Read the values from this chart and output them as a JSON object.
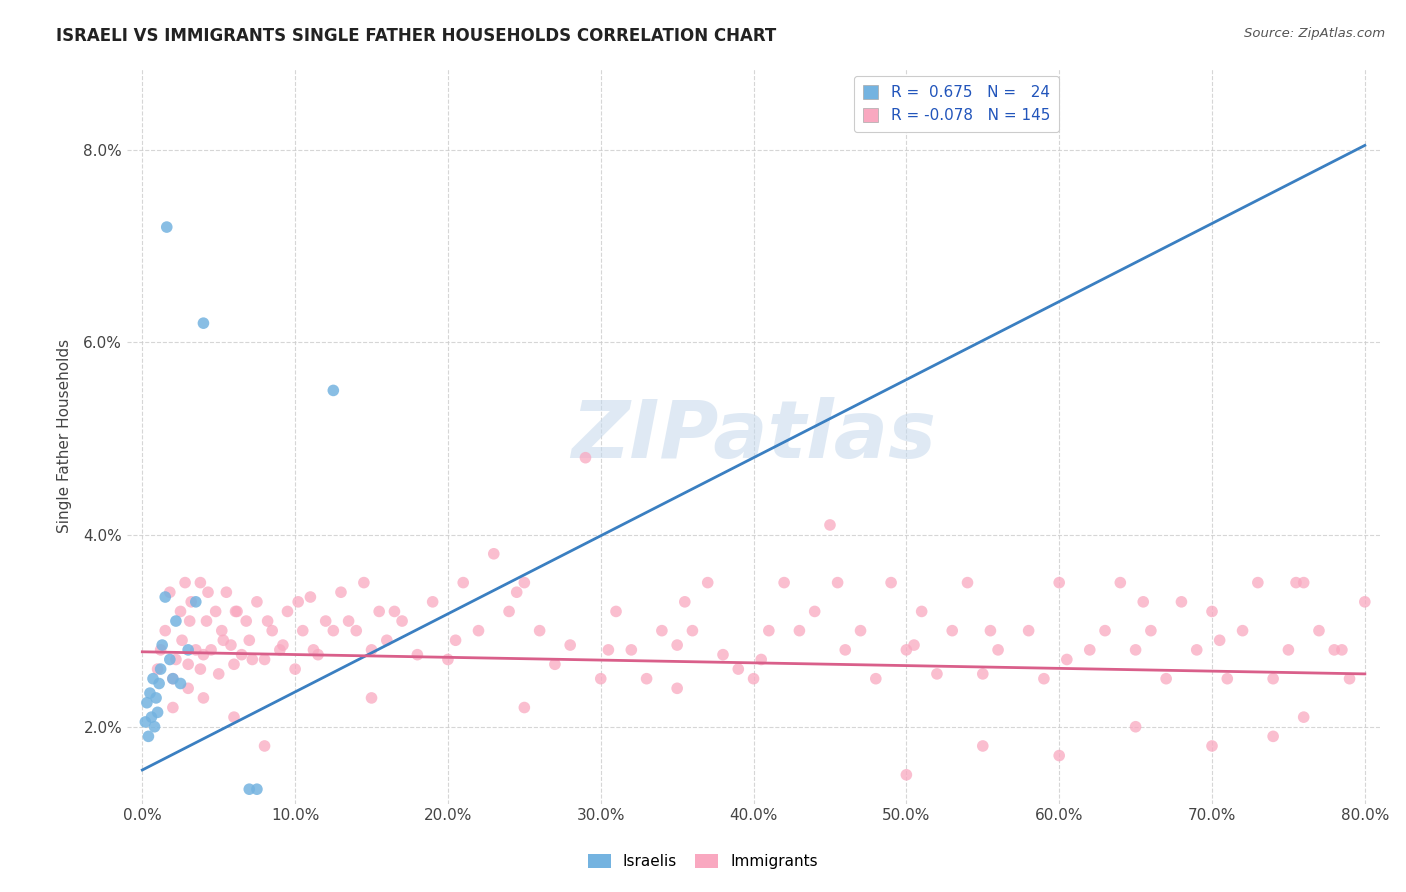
{
  "title": "ISRAELI VS IMMIGRANTS SINGLE FATHER HOUSEHOLDS CORRELATION CHART",
  "source": "Source: ZipAtlas.com",
  "ylabel": "Single Father Households",
  "watermark": "ZIPatlas",
  "xlim": [
    -1,
    81
  ],
  "ylim": [
    1.2,
    8.85
  ],
  "xticks": [
    0,
    10,
    20,
    30,
    40,
    50,
    60,
    70,
    80
  ],
  "yticks": [
    2.0,
    4.0,
    6.0,
    8.0
  ],
  "israelis_color": "#74b3e0",
  "immigrants_color": "#f9a8c0",
  "trend_israeli_color": "#3a7fc1",
  "trend_immigrant_color": "#d95f8a",
  "background_color": "#ffffff",
  "grid_color": "#cccccc",
  "trend_isr_x0": 0,
  "trend_isr_y0": 1.55,
  "trend_isr_x1": 80,
  "trend_isr_y1": 8.05,
  "trend_imm_x0": 0,
  "trend_imm_y0": 2.78,
  "trend_imm_x1": 80,
  "trend_imm_y1": 2.55,
  "israelis_x": [
    0.2,
    0.3,
    0.4,
    0.5,
    0.6,
    0.7,
    0.8,
    0.9,
    1.0,
    1.1,
    1.2,
    1.3,
    1.5,
    1.6,
    1.8,
    2.0,
    2.2,
    2.5,
    3.0,
    3.5,
    4.0,
    7.0,
    7.5,
    12.5
  ],
  "israelis_y": [
    2.05,
    2.25,
    1.9,
    2.35,
    2.1,
    2.5,
    2.0,
    2.3,
    2.15,
    2.45,
    2.6,
    2.85,
    3.35,
    7.2,
    2.7,
    2.5,
    3.1,
    2.45,
    2.8,
    3.3,
    6.2,
    1.35,
    1.35,
    5.5
  ],
  "immigrants_x": [
    1.0,
    1.5,
    2.0,
    2.5,
    2.8,
    3.0,
    3.2,
    3.5,
    3.8,
    4.0,
    4.2,
    4.5,
    4.8,
    5.0,
    5.2,
    5.5,
    5.8,
    6.0,
    6.2,
    6.5,
    6.8,
    7.0,
    7.5,
    8.0,
    8.5,
    9.0,
    9.5,
    10.0,
    10.5,
    11.0,
    11.5,
    12.0,
    12.5,
    13.0,
    14.0,
    14.5,
    15.0,
    15.5,
    16.0,
    17.0,
    18.0,
    19.0,
    20.0,
    21.0,
    22.0,
    23.0,
    24.0,
    25.0,
    26.0,
    27.0,
    28.0,
    29.0,
    30.0,
    31.0,
    32.0,
    33.0,
    34.0,
    35.0,
    36.0,
    37.0,
    38.0,
    39.0,
    40.0,
    41.0,
    42.0,
    43.0,
    44.0,
    45.0,
    46.0,
    47.0,
    48.0,
    49.0,
    50.0,
    51.0,
    52.0,
    53.0,
    54.0,
    55.0,
    56.0,
    58.0,
    59.0,
    60.0,
    62.0,
    63.0,
    64.0,
    65.0,
    66.0,
    67.0,
    68.0,
    69.0,
    70.0,
    71.0,
    72.0,
    73.0,
    74.0,
    75.0,
    76.0,
    77.0,
    78.0,
    79.0
  ],
  "immigrants_y": [
    2.6,
    3.0,
    2.5,
    3.2,
    3.5,
    2.65,
    3.3,
    2.8,
    3.5,
    2.75,
    3.1,
    2.8,
    3.2,
    2.55,
    3.0,
    3.4,
    2.85,
    2.65,
    3.2,
    2.75,
    3.1,
    2.9,
    3.3,
    2.7,
    3.0,
    2.8,
    3.2,
    2.6,
    3.0,
    3.35,
    2.75,
    3.1,
    3.0,
    3.4,
    3.0,
    3.5,
    2.8,
    3.2,
    2.9,
    3.1,
    2.75,
    3.3,
    2.7,
    3.5,
    3.0,
    3.8,
    3.2,
    3.5,
    3.0,
    2.65,
    2.85,
    4.8,
    2.5,
    3.2,
    2.8,
    2.5,
    3.0,
    2.85,
    3.0,
    3.5,
    2.75,
    2.6,
    2.5,
    3.0,
    3.5,
    3.0,
    3.2,
    4.1,
    2.8,
    3.0,
    2.5,
    3.5,
    2.8,
    3.2,
    2.55,
    3.0,
    3.5,
    2.55,
    2.8,
    3.0,
    2.5,
    3.5,
    2.8,
    3.0,
    3.5,
    2.8,
    3.0,
    2.5,
    3.3,
    2.8,
    3.2,
    2.5,
    3.0,
    3.5,
    2.5,
    2.8,
    3.5,
    3.0,
    2.8,
    2.5
  ],
  "immigrants_extra_x": [
    1.2,
    1.8,
    2.2,
    2.6,
    3.1,
    3.8,
    4.3,
    5.3,
    6.1,
    7.2,
    8.2,
    9.2,
    10.2,
    11.2,
    13.5,
    16.5,
    20.5,
    24.5,
    30.5,
    35.5,
    40.5,
    45.5,
    50.5,
    55.5,
    60.5,
    65.5,
    70.5,
    75.5,
    78.5,
    80.0,
    50.0,
    55.0,
    60.0,
    65.0,
    70.0,
    74.0,
    76.0,
    2.0,
    3.0,
    4.0,
    6.0,
    8.0,
    15.0,
    25.0,
    35.0
  ],
  "immigrants_extra_y": [
    2.8,
    3.4,
    2.7,
    2.9,
    3.1,
    2.6,
    3.4,
    2.9,
    3.2,
    2.7,
    3.1,
    2.85,
    3.3,
    2.8,
    3.1,
    3.2,
    2.9,
    3.4,
    2.8,
    3.3,
    2.7,
    3.5,
    2.85,
    3.0,
    2.7,
    3.3,
    2.9,
    3.5,
    2.8,
    3.3,
    1.5,
    1.8,
    1.7,
    2.0,
    1.8,
    1.9,
    2.1,
    2.2,
    2.4,
    2.3,
    2.1,
    1.8,
    2.3,
    2.2,
    2.4
  ]
}
